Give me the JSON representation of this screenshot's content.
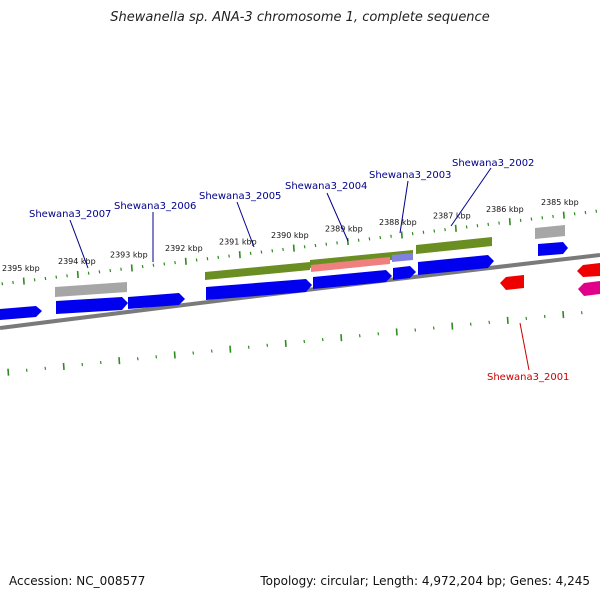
{
  "title": "Shewanella sp. ANA-3 chromosome 1, complete sequence",
  "accession": "Accession: NC_008577",
  "summary": "Topology: circular; Length: 4,972,204 bp; Genes: 4,245",
  "colors": {
    "cds_forward": "#0000ee",
    "cds_reverse": "#ee0000",
    "gene_track": "#6b8e23",
    "pseudo_gray": "#a0a0a0",
    "rna_pink": "#f08080",
    "misc_purple": "#8080e0",
    "magenta": "#e0008a",
    "backbone": "#808080",
    "tick_green": "#2e8b1f",
    "label_forward": "#00008b",
    "label_reverse": "#cc0000"
  },
  "scale_labels": [
    "2385 kbp",
    "2386 kbp",
    "2387 kbp",
    "2388 kbp",
    "2389 kbp",
    "2390 kbp",
    "2391 kbp",
    "2392 kbp",
    "2393 kbp",
    "2394 kbp",
    "2395 kbp"
  ],
  "gene_labels": [
    {
      "text": "Shewana3_2001",
      "strand": "reverse"
    },
    {
      "text": "Shewana3_2002",
      "strand": "forward"
    },
    {
      "text": "Shewana3_2003",
      "strand": "forward"
    },
    {
      "text": "Shewana3_2004",
      "strand": "forward"
    },
    {
      "text": "Shewana3_2005",
      "strand": "forward"
    },
    {
      "text": "Shewana3_2006",
      "strand": "forward"
    },
    {
      "text": "Shewana3_2007",
      "strand": "forward"
    }
  ]
}
